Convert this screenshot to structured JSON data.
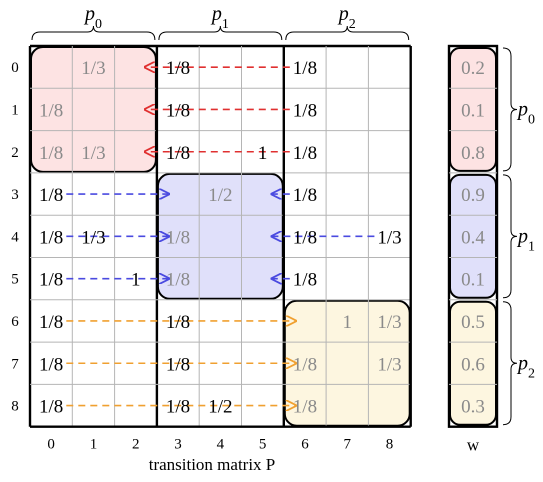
{
  "matrix": {
    "caption": "transition matrix P",
    "column_indices": [
      "0",
      "1",
      "2",
      "3",
      "4",
      "5",
      "6",
      "7",
      "8"
    ],
    "row_indices": [
      "0",
      "1",
      "2",
      "3",
      "4",
      "5",
      "6",
      "7",
      "8"
    ],
    "cells": [
      [
        "",
        "1/3",
        "",
        "1/8",
        "",
        "",
        "1/8",
        "",
        ""
      ],
      [
        "1/8",
        "",
        "",
        "1/8",
        "",
        "",
        "1/8",
        "",
        ""
      ],
      [
        "1/8",
        "1/3",
        "",
        "1/8",
        "",
        "1",
        "1/8",
        "",
        ""
      ],
      [
        "1/8",
        "",
        "",
        "",
        "1/2",
        "",
        "1/8",
        "",
        ""
      ],
      [
        "1/8",
        "1/3",
        "",
        "1/8",
        "",
        "",
        "1/8",
        "",
        "1/3"
      ],
      [
        "1/8",
        "",
        "1",
        "1/8",
        "",
        "",
        "1/8",
        "",
        ""
      ],
      [
        "1/8",
        "",
        "",
        "1/8",
        "",
        "",
        "",
        "1",
        "1/3"
      ],
      [
        "1/8",
        "",
        "",
        "1/8",
        "",
        "",
        "1/8",
        "",
        "1/3"
      ],
      [
        "1/8",
        "",
        "",
        "1/8",
        "1/2",
        "",
        "1/8",
        "",
        ""
      ]
    ],
    "gray_cells": [
      [
        0,
        1
      ],
      [
        1,
        0
      ],
      [
        2,
        0
      ],
      [
        2,
        1
      ],
      [
        3,
        4
      ],
      [
        4,
        3
      ],
      [
        5,
        3
      ],
      [
        6,
        7
      ],
      [
        6,
        8
      ],
      [
        7,
        6
      ],
      [
        7,
        8
      ],
      [
        8,
        6
      ]
    ]
  },
  "partitions": [
    {
      "label": "p",
      "sub": "0",
      "color": "#e03030",
      "fill": "#fde3e3"
    },
    {
      "label": "p",
      "sub": "1",
      "color": "#4a4ae0",
      "fill": "#e0e0fa"
    },
    {
      "label": "p",
      "sub": "2",
      "color": "#f0a030",
      "fill": "#fdf6e0"
    }
  ],
  "vector": {
    "label": "w",
    "values": [
      "0.2",
      "0.1",
      "0.8",
      "0.9",
      "0.4",
      "0.1",
      "0.5",
      "0.6",
      "0.3"
    ]
  }
}
